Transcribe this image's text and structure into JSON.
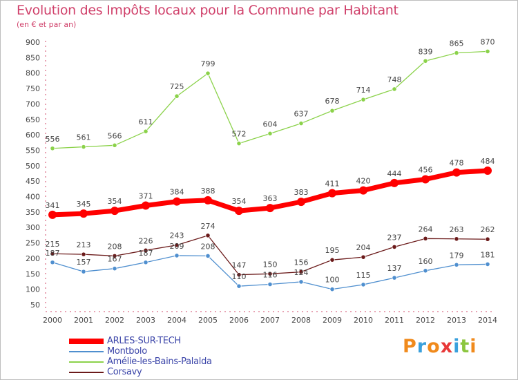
{
  "header": {
    "title": "Evolution des Impôts locaux pour la Commune par Habitant",
    "subtitle": "(en € et par an)"
  },
  "logo": {
    "text": [
      "P",
      "r",
      "o",
      "x",
      "i",
      "t",
      "i"
    ],
    "colors": [
      "#f08a1c",
      "#3aa0dc",
      "#f08a1c",
      "#e83838",
      "#3aa0dc",
      "#8cc63f",
      "#f08a1c"
    ]
  },
  "chart_data": {
    "type": "line",
    "title": "Evolution des Impôts locaux pour la Commune par Habitant",
    "subtitle": "(en € et par an)",
    "xlabel": "",
    "ylabel": "",
    "x": [
      "2000",
      "2001",
      "2002",
      "2003",
      "2004",
      "2005",
      "2006",
      "2007",
      "2008",
      "2009",
      "2010",
      "2011",
      "2012",
      "2013",
      "2014"
    ],
    "ylim": [
      50,
      900
    ],
    "yticks": [
      50,
      100,
      150,
      200,
      250,
      300,
      350,
      400,
      450,
      500,
      550,
      600,
      650,
      700,
      750,
      800,
      850,
      900
    ],
    "grid": false,
    "legend_position": "bottom-left",
    "series": [
      {
        "name": "ARLES-SUR-TECH",
        "color": "#ff0000",
        "values": [
          341,
          345,
          354,
          371,
          384,
          388,
          354,
          363,
          383,
          411,
          420,
          444,
          456,
          478,
          484
        ]
      },
      {
        "name": "Montbolo",
        "color": "#4f8fcf",
        "values": [
          187,
          157,
          167,
          187,
          209,
          208,
          110,
          116,
          124,
          100,
          115,
          137,
          160,
          179,
          181
        ]
      },
      {
        "name": "Amélie-les-Bains-Palalda",
        "color": "#8bd24a",
        "values": [
          556,
          561,
          566,
          611,
          725,
          799,
          572,
          604,
          637,
          678,
          714,
          748,
          839,
          865,
          870
        ]
      },
      {
        "name": "Corsavy",
        "color": "#6b1a1a",
        "values": [
          215,
          213,
          208,
          226,
          243,
          274,
          147,
          150,
          156,
          195,
          204,
          237,
          264,
          263,
          262
        ]
      }
    ]
  }
}
